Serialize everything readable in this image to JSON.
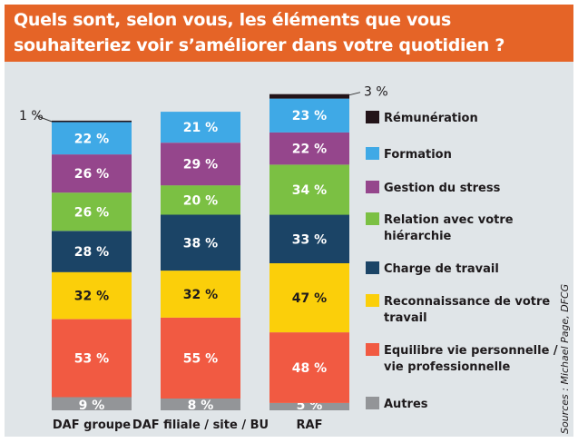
{
  "chart_data": {
    "type": "bar",
    "stacked": true,
    "title_lines": [
      "Quels sont, selon vous, les éléments que vous",
      "souhaiteriez voir s’améliorer dans votre quotidien ?"
    ],
    "title": "Quels sont, selon vous, les éléments que vous souhaiteriez voir s’améliorer dans votre quotidien ?",
    "categories": [
      "DAF groupe",
      "DAF filiale / site / BU",
      "RAF"
    ],
    "series": [
      {
        "name": "Autres",
        "color": "#939598",
        "label_color": "#ffffff",
        "values": [
          9,
          8,
          5
        ]
      },
      {
        "name": "Equilibre vie personnelle / vie professionnelle",
        "legend_lines": [
          "Equilibre vie personnelle /",
          "vie professionnelle"
        ],
        "color": "#f15a42",
        "label_color": "#ffffff",
        "values": [
          53,
          55,
          48
        ]
      },
      {
        "name": "Reconnaissance de votre travail",
        "legend_lines": [
          "Reconnaissance de votre",
          "travail"
        ],
        "color": "#fbcf0a",
        "label_color": "#1e1a1c",
        "values": [
          32,
          32,
          47
        ]
      },
      {
        "name": "Charge de travail",
        "legend_lines": [
          "Charge de travail"
        ],
        "color": "#1b4466",
        "label_color": "#ffffff",
        "values": [
          28,
          38,
          33
        ]
      },
      {
        "name": "Relation avec votre hiérarchie",
        "legend_lines": [
          "Relation avec votre",
          "hiérarchie"
        ],
        "color": "#7bc043",
        "label_color": "#ffffff",
        "values": [
          26,
          20,
          34
        ]
      },
      {
        "name": "Gestion du stress",
        "legend_lines": [
          "Gestion du stress"
        ],
        "color": "#95468c",
        "label_color": "#ffffff",
        "values": [
          26,
          29,
          22
        ]
      },
      {
        "name": "Formation",
        "legend_lines": [
          "Formation"
        ],
        "color": "#3fa9e6",
        "label_color": "#ffffff",
        "values": [
          22,
          21,
          23
        ]
      },
      {
        "name": "Rémunération",
        "legend_lines": [
          "Rémunération"
        ],
        "color": "#231419",
        "label_color": "#1e1a1c",
        "values": [
          1,
          0,
          3
        ]
      }
    ],
    "legend_order": [
      "Rémunération",
      "Formation",
      "Gestion du stress",
      "Relation avec votre hiérarchie",
      "Charge de travail",
      "Reconnaissance de votre travail",
      "Equilibre vie personnelle / vie professionnelle",
      "Autres"
    ],
    "legend_position": "right",
    "value_suffix": " %",
    "xlabel": "",
    "ylabel": "",
    "grid": false,
    "source": "Sources : Michael Page, DFCG"
  },
  "colors": {
    "header_bg": "#e56427",
    "panel_bg": "#e0e5e8"
  }
}
